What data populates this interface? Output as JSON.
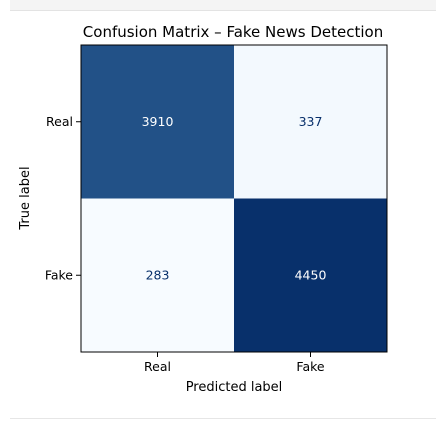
{
  "chart_data": {
    "type": "heatmap",
    "title": "Confusion Matrix – Fake News Detection",
    "xlabel": "Predicted label",
    "ylabel": "True label",
    "x_categories": [
      "Real",
      "Fake"
    ],
    "y_categories": [
      "Real",
      "Fake"
    ],
    "values": [
      [
        3910,
        337
      ],
      [
        283,
        4450
      ]
    ],
    "colormap": "Blues",
    "colors": {
      "low": "#f7fbff",
      "mid": "#6baed6",
      "high": "#08306b",
      "text_on_dark": "#ffffff",
      "text_on_light": "#08306b"
    }
  }
}
